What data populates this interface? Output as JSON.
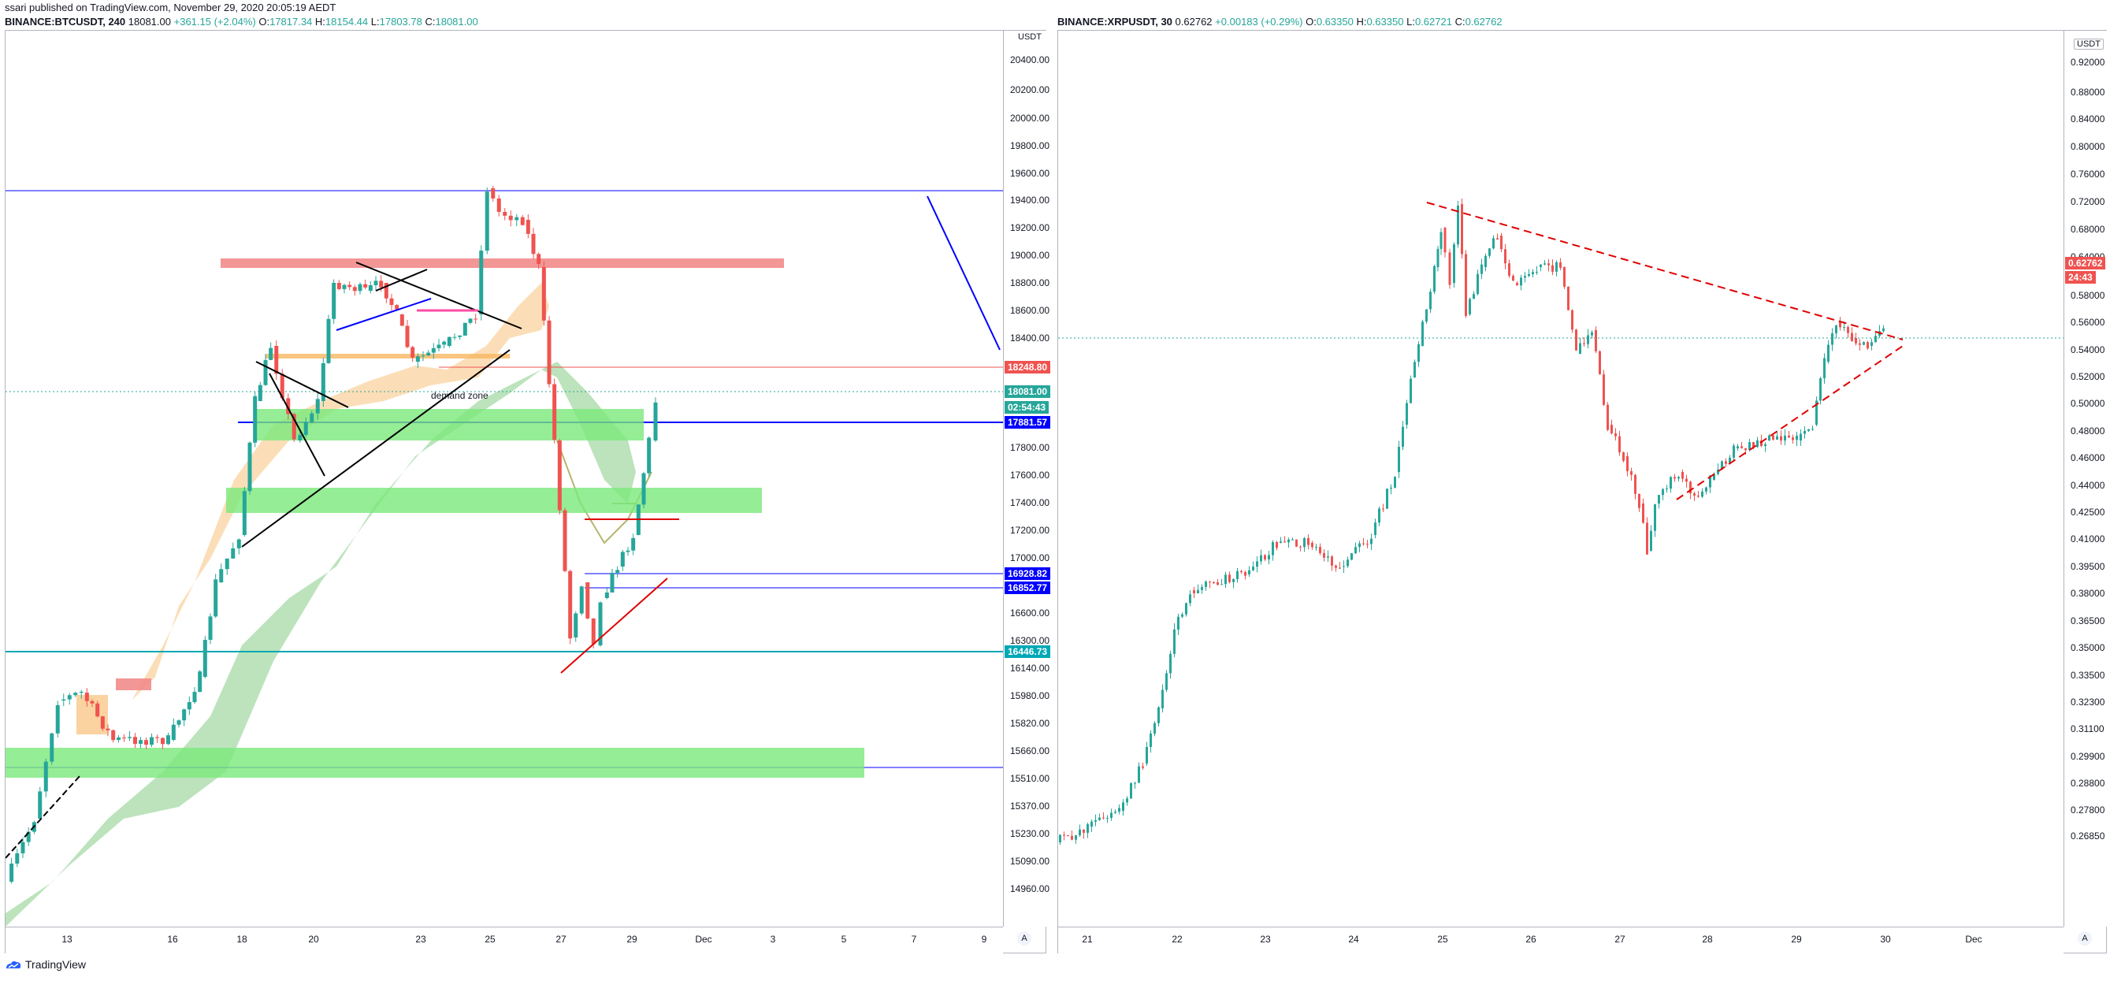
{
  "header": {
    "publisher_line": "ssari published on TradingView.com, November 29, 2020 20:05:19 AEDT",
    "btc": {
      "symbol": "BINANCE:BTCUSDT, 240",
      "last": "18081.00",
      "change": "+361.15 (+2.04%)",
      "o_label": "O:",
      "o": "17817.34",
      "h_label": "H:",
      "h": "18154.44",
      "l_label": "L:",
      "l": "17803.78",
      "c_label": "C:",
      "c": "18081.00"
    },
    "xrp": {
      "symbol": "BINANCE:XRPUSDT, 30",
      "last": "0.62762",
      "change": "+0.00183 (+0.29%)",
      "o_label": "O:",
      "o": "0.63350",
      "h_label": "H:",
      "h": "0.63350",
      "l_label": "L:",
      "l": "0.62721",
      "c_label": "C:",
      "c": "0.62762"
    }
  },
  "colors": {
    "up": "#26a69a",
    "down": "#ef5350",
    "blue_line": "#0000ff",
    "green_zone": "#7be87b",
    "red_zone": "#f28b8b",
    "orange_zone": "#f7b660",
    "cloud": "#8fd18f",
    "teal_line": "#00a8b5"
  },
  "btc_chart": {
    "unit": "USDT",
    "y_ticks": [
      "20400.00",
      "20200.00",
      "20000.00",
      "19800.00",
      "19600.00",
      "19400.00",
      "19200.00",
      "19000.00",
      "18800.00",
      "18600.00",
      "18400.00",
      "17800.00",
      "17600.00",
      "17400.00",
      "17200.00",
      "17000.00",
      "16600.00",
      "16300.00",
      "16140.00",
      "15980.00",
      "15820.00",
      "15660.00",
      "15510.00",
      "15370.00",
      "15230.00",
      "15090.00",
      "14960.00"
    ],
    "x_ticks": [
      "13",
      "16",
      "18",
      "20",
      "23",
      "25",
      "27",
      "29",
      "Dec",
      "3",
      "5",
      "7",
      "9"
    ],
    "price_labels": [
      {
        "text": "18248.80",
        "color": "#ef5350"
      },
      {
        "text": "18081.00",
        "color": "#26a69a"
      },
      {
        "text": "02:54:43",
        "color": "#26a69a"
      },
      {
        "text": "17881.57",
        "color": "#0000ff"
      },
      {
        "text": "16928.82",
        "color": "#0000ff"
      },
      {
        "text": "16852.77",
        "color": "#0000ff"
      },
      {
        "text": "16446.73",
        "color": "#00a8b5"
      }
    ],
    "annotation": "demand zone",
    "auto_label": "A"
  },
  "xrp_chart": {
    "unit": "USDT",
    "y_ticks": [
      "0.92000",
      "0.88000",
      "0.84000",
      "0.80000",
      "0.76000",
      "0.72000",
      "0.68000",
      "0.64000",
      "0.58000",
      "0.56000",
      "0.54000",
      "0.52000",
      "0.50000",
      "0.48000",
      "0.46000",
      "0.44000",
      "0.42500",
      "0.41000",
      "0.39500",
      "0.38000",
      "0.36500",
      "0.35000",
      "0.33500",
      "0.32300",
      "0.31100",
      "0.29900",
      "0.28800",
      "0.27800",
      "0.26850"
    ],
    "x_ticks": [
      "21",
      "22",
      "23",
      "24",
      "25",
      "26",
      "27",
      "28",
      "29",
      "30",
      "Dec"
    ],
    "price_labels": [
      {
        "text": "0.62762",
        "color": "#ef5350"
      },
      {
        "text": "24:43",
        "color": "#ef5350"
      }
    ],
    "auto_label": "A"
  },
  "footer": {
    "brand": "TradingView"
  }
}
